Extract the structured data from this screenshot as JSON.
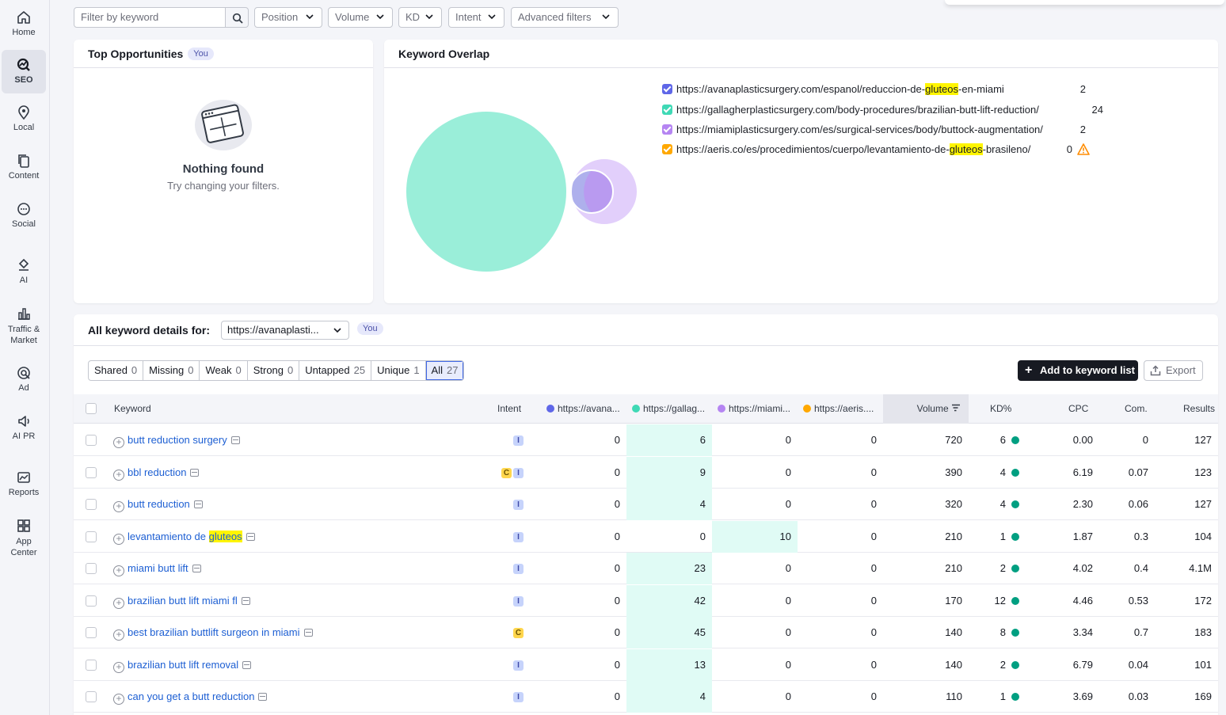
{
  "nav": [
    {
      "label": "Home",
      "icon": "home-icon"
    },
    {
      "label": "SEO",
      "icon": "seo-icon"
    },
    {
      "label": "Local",
      "icon": "local-pin-icon"
    },
    {
      "label": "Content",
      "icon": "content-icon"
    },
    {
      "label": "Social",
      "icon": "social-icon"
    },
    {
      "label": "AI",
      "icon": "ai-icon"
    },
    {
      "label": "Traffic &",
      "label2": "Market",
      "icon": "traffic-market-icon"
    },
    {
      "label": "Ad",
      "icon": "ad-icon"
    },
    {
      "label": "AI PR",
      "icon": "ai-pr-icon"
    },
    {
      "label": "Reports",
      "icon": "reports-icon"
    },
    {
      "label": "App",
      "label2": "Center",
      "icon": "app-center-icon"
    }
  ],
  "filters": {
    "keyword_placeholder": "Filter by keyword",
    "position": "Position",
    "volume": "Volume",
    "kd": "KD",
    "intent": "Intent",
    "advanced": "Advanced filters"
  },
  "top_opportunities": {
    "title": "Top Opportunities",
    "badge": "You",
    "empty_title": "Nothing found",
    "empty_subtitle": "Try changing your filters."
  },
  "overlap": {
    "title": "Keyword Overlap",
    "colors": [
      "#5f67e8",
      "#3fd9b5",
      "#b585f2",
      "#ffa800"
    ],
    "rows": [
      {
        "pre": "https://avanaplasticsurgery.com/espanol/reduccion-de-",
        "mark": "gluteos",
        "post": "-en-miami",
        "count": "2"
      },
      {
        "pre": "https://gallagherplasticsurgery.com/body-procedures/brazilian-butt-lift-reduction/",
        "mark": "",
        "post": "",
        "count": "24"
      },
      {
        "pre": "https://miamiplasticsurgery.com/es/surgical-services/body/buttock-augmentation/",
        "mark": "",
        "post": "",
        "count": "2"
      },
      {
        "pre": "https://aeris.co/es/procedimientos/cuerpo/levantamiento-de-",
        "mark": "gluteos",
        "post": "-brasileno/",
        "count": "0"
      }
    ]
  },
  "details": {
    "title": "All keyword details for:",
    "select_value": "https://avanaplasti...",
    "badge": "You",
    "segments": [
      {
        "label": "Shared",
        "count": "0"
      },
      {
        "label": "Missing",
        "count": "0"
      },
      {
        "label": "Weak",
        "count": "0"
      },
      {
        "label": "Strong",
        "count": "0"
      },
      {
        "label": "Untapped",
        "count": "25"
      },
      {
        "label": "Unique",
        "count": "1"
      },
      {
        "label": "All",
        "count": "27"
      }
    ],
    "add_button": "Add to keyword list",
    "export_button": "Export"
  },
  "table": {
    "headers": {
      "keyword": "Keyword",
      "intent": "Intent",
      "d1": "https://avana...",
      "d2": "https://gallag...",
      "d3": "https://miami...",
      "d4": "https://aeris....",
      "volume": "Volume",
      "kd": "KD%",
      "cpc": "CPC",
      "com": "Com.",
      "results": "Results"
    },
    "rows": [
      {
        "kw_pre": "butt reduction surgery",
        "kw_mark": "",
        "intents": [
          "I"
        ],
        "d1": "0",
        "d2": "6",
        "d3": "0",
        "d4": "0",
        "vol": "720",
        "kd": "6",
        "cpc": "0.00",
        "com": "0",
        "res": "127",
        "best": 2
      },
      {
        "kw_pre": "bbl reduction",
        "kw_mark": "",
        "intents": [
          "C",
          "I"
        ],
        "d1": "0",
        "d2": "9",
        "d3": "0",
        "d4": "0",
        "vol": "390",
        "kd": "4",
        "cpc": "6.19",
        "com": "0.07",
        "res": "123",
        "best": 2
      },
      {
        "kw_pre": "butt reduction",
        "kw_mark": "",
        "intents": [
          "I"
        ],
        "d1": "0",
        "d2": "4",
        "d3": "0",
        "d4": "0",
        "vol": "320",
        "kd": "4",
        "cpc": "2.30",
        "com": "0.06",
        "res": "127",
        "best": 2
      },
      {
        "kw_pre": "levantamiento de ",
        "kw_mark": "gluteos",
        "intents": [
          "I"
        ],
        "d1": "0",
        "d2": "0",
        "d3": "10",
        "d4": "0",
        "vol": "210",
        "kd": "1",
        "cpc": "1.87",
        "com": "0.3",
        "res": "104",
        "best": 3
      },
      {
        "kw_pre": "miami butt lift",
        "kw_mark": "",
        "intents": [
          "I"
        ],
        "d1": "0",
        "d2": "23",
        "d3": "0",
        "d4": "0",
        "vol": "210",
        "kd": "2",
        "cpc": "4.02",
        "com": "0.4",
        "res": "4.1M",
        "best": 2
      },
      {
        "kw_pre": "brazilian butt lift miami fl",
        "kw_mark": "",
        "intents": [
          "I"
        ],
        "d1": "0",
        "d2": "42",
        "d3": "0",
        "d4": "0",
        "vol": "170",
        "kd": "12",
        "cpc": "4.46",
        "com": "0.53",
        "res": "172",
        "best": 2
      },
      {
        "kw_pre": "best brazilian buttlift surgeon in miami",
        "kw_mark": "",
        "intents": [
          "C"
        ],
        "d1": "0",
        "d2": "45",
        "d3": "0",
        "d4": "0",
        "vol": "140",
        "kd": "8",
        "cpc": "3.34",
        "com": "0.7",
        "res": "183",
        "best": 2
      },
      {
        "kw_pre": "brazilian butt lift removal",
        "kw_mark": "",
        "intents": [
          "I"
        ],
        "d1": "0",
        "d2": "13",
        "d3": "0",
        "d4": "0",
        "vol": "140",
        "kd": "2",
        "cpc": "6.79",
        "com": "0.04",
        "res": "101",
        "best": 2
      },
      {
        "kw_pre": "can you get a butt reduction",
        "kw_mark": "",
        "intents": [
          "I"
        ],
        "d1": "0",
        "d2": "4",
        "d3": "0",
        "d4": "0",
        "vol": "110",
        "kd": "1",
        "cpc": "3.69",
        "com": "0.03",
        "res": "169",
        "best": 2
      }
    ]
  }
}
